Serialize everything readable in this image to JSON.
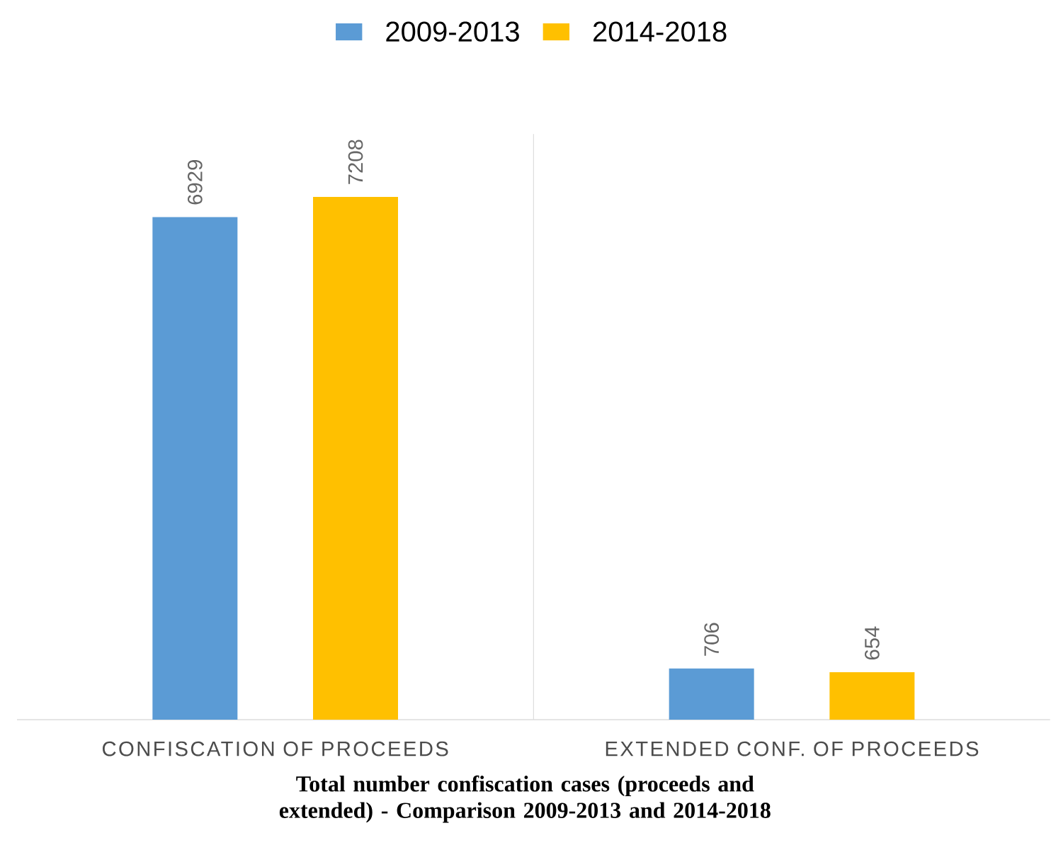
{
  "chart_data": {
    "type": "bar",
    "title": "Total number confiscation cases (proceeds and extended) - Comparison 2009-2013 and 2014-2018",
    "categories": [
      "CONFISCATION OF PROCEEDS",
      "EXTENDED CONF. OF PROCEEDS"
    ],
    "series": [
      {
        "name": "2009-2013",
        "color": "#5b9bd5",
        "values": [
          6929,
          706
        ]
      },
      {
        "name": "2014-2018",
        "color": "#ffc000",
        "values": [
          7208,
          654
        ]
      }
    ],
    "data_labels": true,
    "legend": "top"
  }
}
